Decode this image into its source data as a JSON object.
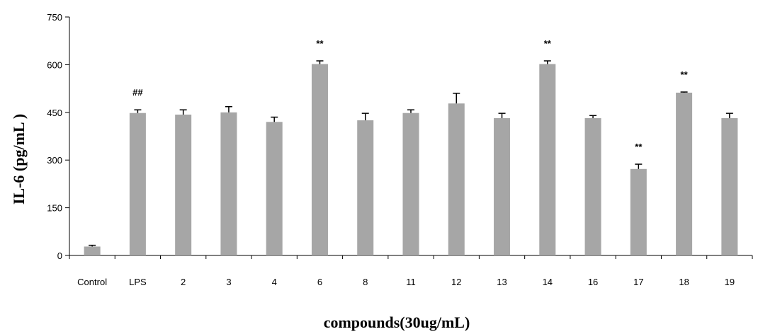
{
  "chart_data": {
    "type": "bar",
    "xlabel": "compounds(30ug/mL)",
    "ylabel": "IL-6 (pg/mL )",
    "ylim": [
      0,
      750
    ],
    "yticks": [
      "0",
      "150",
      "300",
      "450",
      "600",
      "750"
    ],
    "categories": [
      "Control",
      "LPS",
      "2",
      "3",
      "4",
      "6",
      "8",
      "11",
      "12",
      "13",
      "14",
      "16",
      "17",
      "18",
      "19"
    ],
    "values": [
      28,
      448,
      443,
      450,
      420,
      602,
      425,
      448,
      478,
      432,
      602,
      432,
      272,
      512,
      432
    ],
    "errors": [
      4,
      10,
      15,
      18,
      15,
      10,
      22,
      10,
      32,
      15,
      10,
      8,
      15,
      2,
      15
    ],
    "annotations": [
      "",
      "##",
      "",
      "",
      "",
      "**",
      "",
      "",
      "",
      "",
      "**",
      "",
      "**",
      "**",
      ""
    ],
    "grid": false,
    "bar_color": "#a6a6a6"
  }
}
